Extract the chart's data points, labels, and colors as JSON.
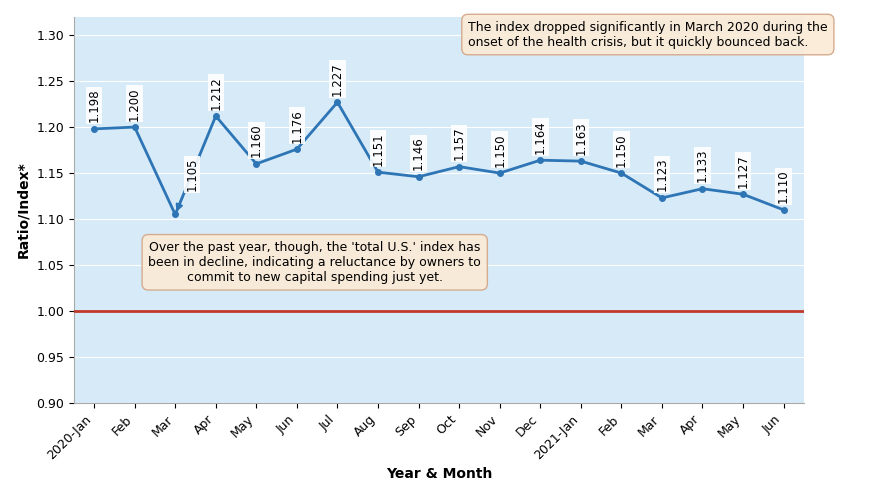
{
  "x_labels": [
    "2020-Jan",
    "Feb",
    "Mar",
    "Apr",
    "May",
    "Jun",
    "Jul",
    "Aug",
    "Sep",
    "Oct",
    "Nov",
    "Dec",
    "2021-Jan",
    "Feb",
    "Mar",
    "Apr",
    "May",
    "Jun"
  ],
  "values": [
    1.198,
    1.2,
    1.105,
    1.212,
    1.16,
    1.176,
    1.227,
    1.151,
    1.146,
    1.157,
    1.15,
    1.164,
    1.163,
    1.15,
    1.123,
    1.133,
    1.127,
    1.11
  ],
  "baseline": 1.0,
  "ylim": [
    0.9,
    1.32
  ],
  "yticks": [
    0.9,
    0.95,
    1.0,
    1.05,
    1.1,
    1.15,
    1.2,
    1.25,
    1.3
  ],
  "line_color": "#2E75B6",
  "baseline_color": "#C0392B",
  "ylabel": "Ratio/Index*",
  "xlabel": "Year & Month",
  "annotation1_text": "The index dropped significantly in March 2020 during the\nonset of the health crisis, but it quickly bounced back.",
  "annotation2_text": "Over the past year, though, the 'total U.S.' index has\nbeen in decline, indicating a reluctance by owners to\ncommit to new capital spending just yet.",
  "annotation_box_color": "#FAEBD7",
  "annotation_edge_color": "#D4A88A",
  "background_color": "#FFFFFF",
  "plot_bg_color": "#D6EAF8",
  "grid_color": "#FFFFFF",
  "label_fontsize": 8.5,
  "axis_label_fontsize": 10,
  "tick_fontsize": 9
}
